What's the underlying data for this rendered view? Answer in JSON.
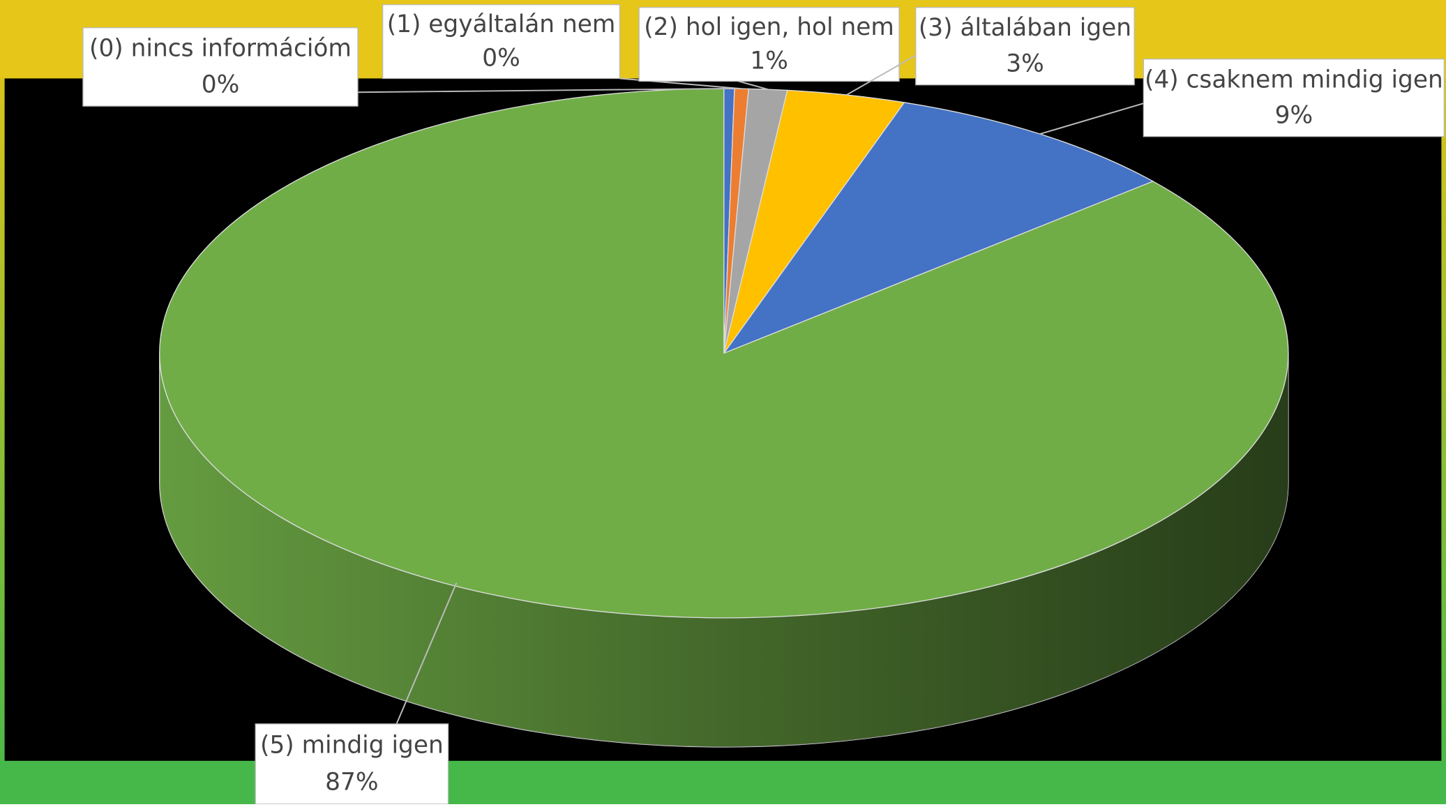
{
  "chart_data": {
    "type": "pie",
    "categories": [
      "(0) nincs információm",
      "(1) egyáltalán nem",
      "(2) hol igen, hol nem",
      "(3) általában igen",
      "(4) csaknem mindig igen",
      "(5) mindig igen"
    ],
    "values": [
      0.3,
      0.4,
      1.1,
      3.4,
      8.6,
      86.6
    ],
    "value_labels": [
      "0%",
      "0%",
      "1%",
      "3%",
      "9%",
      "87%"
    ],
    "colors": [
      "#4472c4",
      "#ed7d31",
      "#a5a5a5",
      "#ffc000",
      "#4472c4",
      "#70ad47"
    ]
  }
}
